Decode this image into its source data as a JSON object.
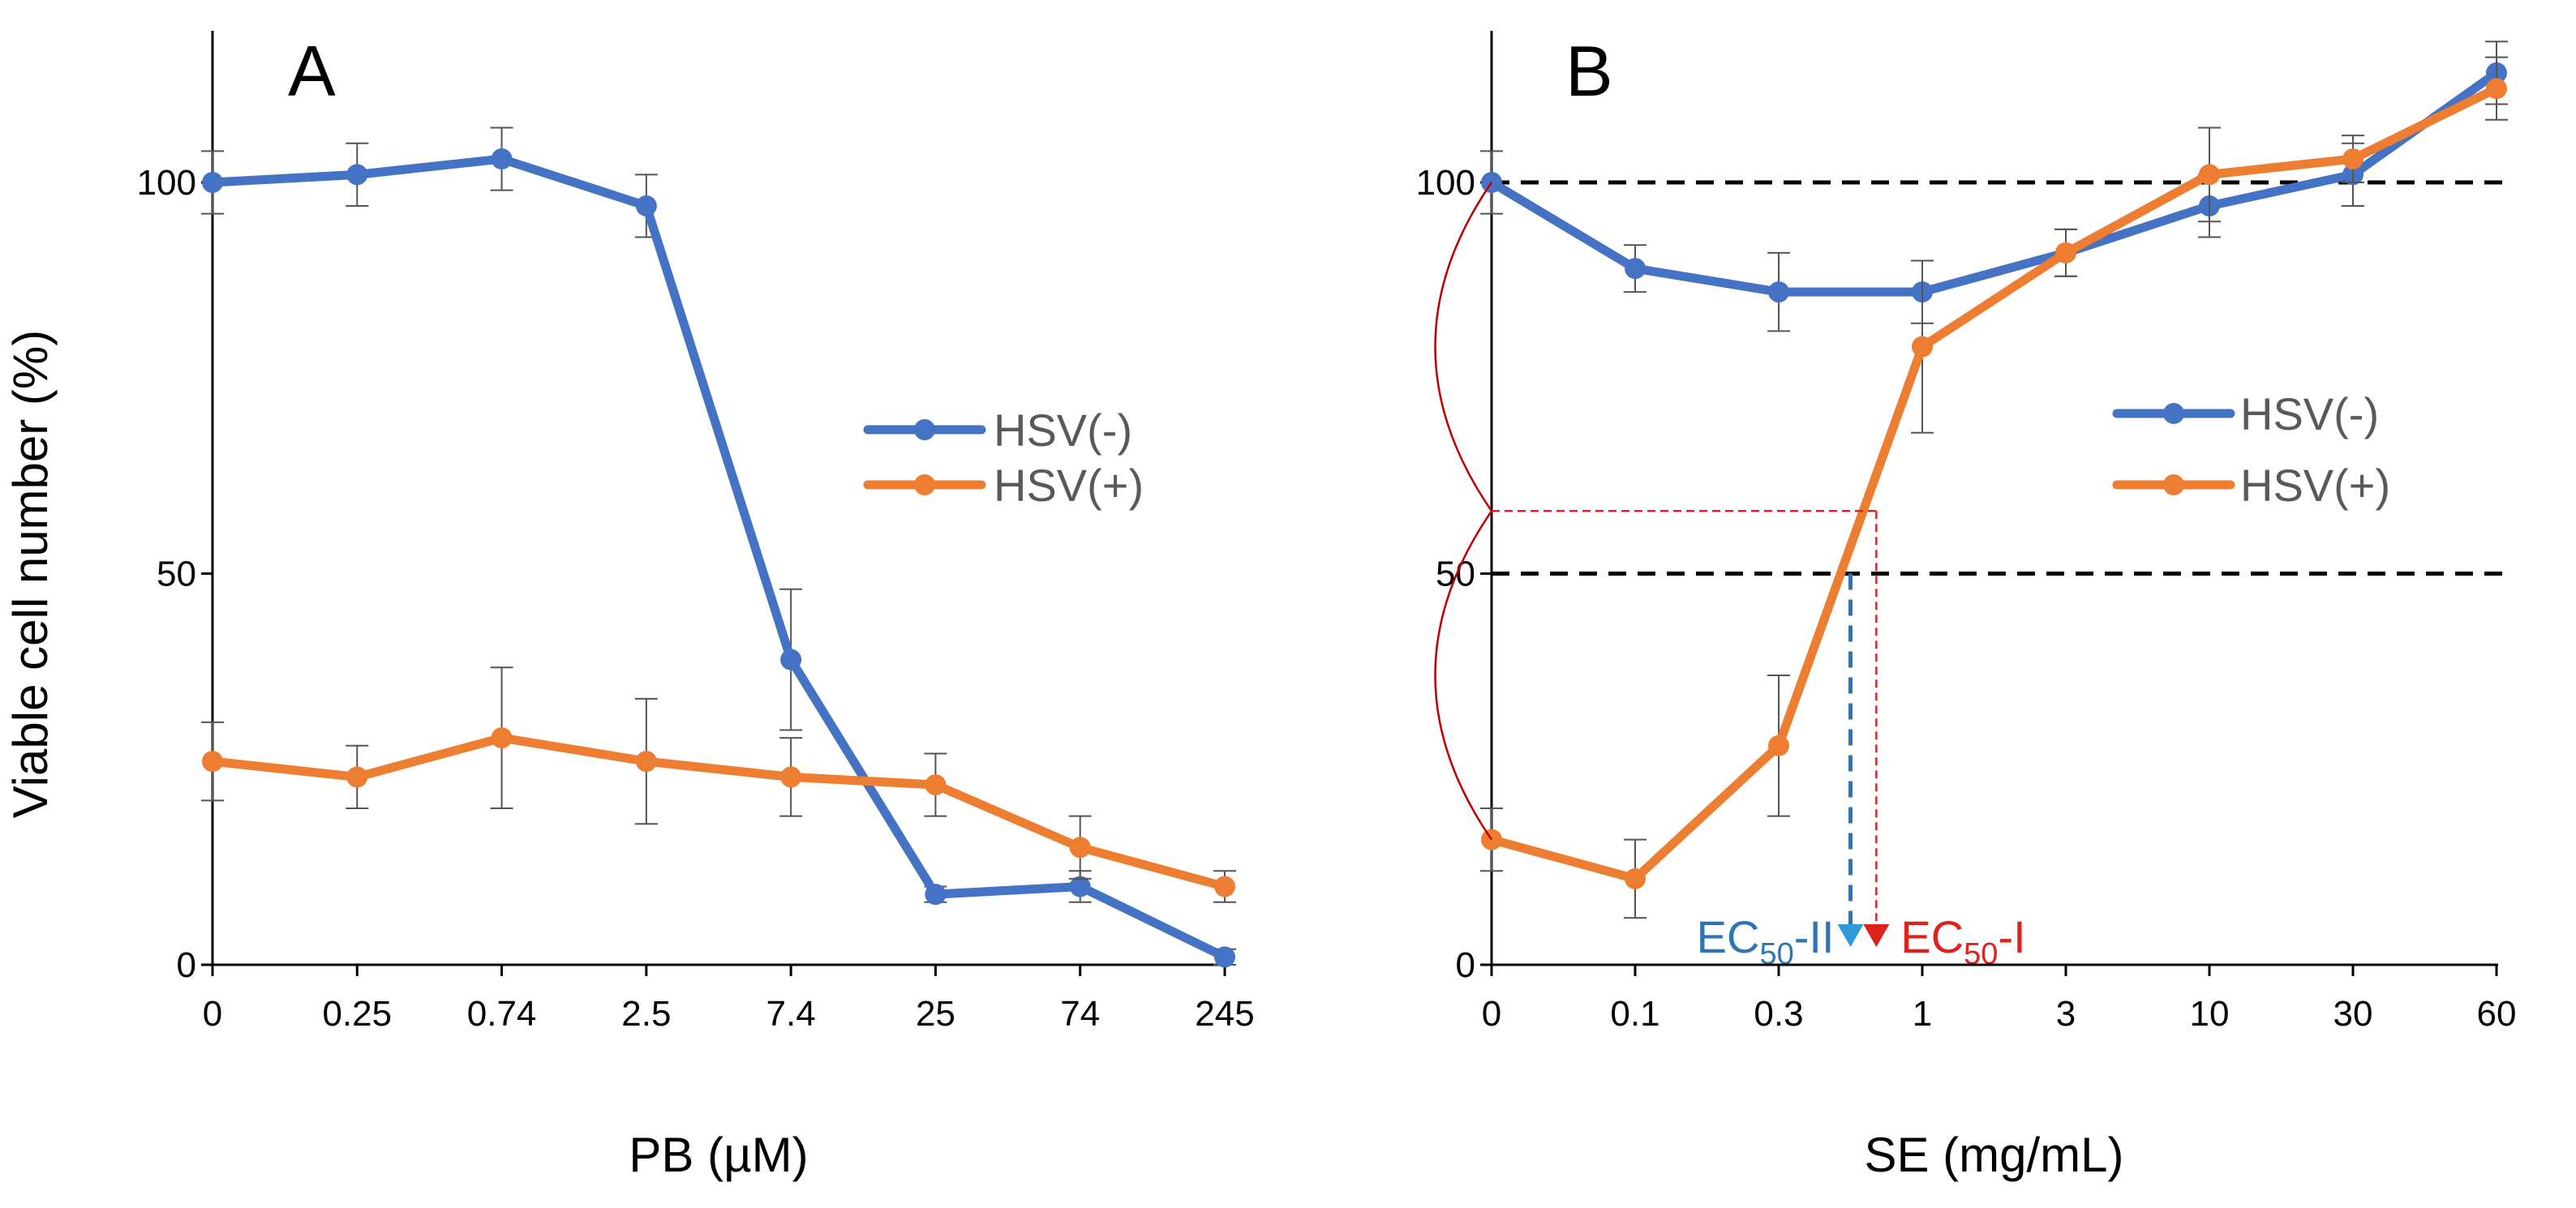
{
  "chart_data": [
    {
      "type": "line",
      "panel_label": "A",
      "xlabel": "PB (µM)",
      "ylabel": "Viable cell number  (%)",
      "categories": [
        "0",
        "0.25",
        "0.74",
        "2.5",
        "7.4",
        "25",
        "74",
        "245"
      ],
      "yticks": [
        "0",
        "50",
        "100"
      ],
      "ylim": [
        0,
        120
      ],
      "series": [
        {
          "name": "HSV(-)",
          "color": "#4472C4",
          "values": [
            100,
            101,
            103,
            97,
            39,
            9,
            10,
            1
          ],
          "errors": [
            4,
            4,
            4,
            4,
            9,
            1,
            2,
            1
          ]
        },
        {
          "name": "HSV(+)",
          "color": "#ED7D31",
          "values": [
            26,
            24,
            29,
            26,
            24,
            23,
            15,
            10
          ],
          "errors": [
            5,
            4,
            9,
            8,
            5,
            4,
            4,
            2
          ]
        }
      ],
      "legend": [
        "HSV(-)",
        "HSV(+)"
      ]
    },
    {
      "type": "line",
      "panel_label": "B",
      "xlabel": "SE (mg/mL)",
      "ylabel": "",
      "categories": [
        "0",
        "0.1",
        "0.3",
        "1",
        "3",
        "10",
        "30",
        "60"
      ],
      "yticks": [
        "0",
        "50",
        "100"
      ],
      "ylim": [
        0,
        120
      ],
      "reference_lines": [
        100,
        50
      ],
      "series": [
        {
          "name": "HSV(-)",
          "color": "#4472C4",
          "values": [
            100,
            89,
            86,
            86,
            91,
            97,
            101,
            114
          ],
          "errors": [
            4,
            3,
            5,
            4,
            3,
            4,
            4,
            4
          ]
        },
        {
          "name": "HSV(+)",
          "color": "#ED7D31",
          "values": [
            16,
            11,
            28,
            79,
            91,
            101,
            103,
            112
          ],
          "errors": [
            4,
            5,
            9,
            11,
            3,
            6,
            3,
            4
          ]
        }
      ],
      "legend": [
        "HSV(-)",
        "HSV(+)"
      ],
      "annotations": {
        "ec50_ii": {
          "main": "EC",
          "sub": "50",
          "suffix": "-II",
          "color": "#2E75B6",
          "x_category_pos": 2.5,
          "y_value": 50
        },
        "ec50_i": {
          "main": "EC",
          "sub": "50",
          "suffix": "-I",
          "color": "#E0201B",
          "x_category_pos": 2.68,
          "y_value": 58
        }
      }
    }
  ]
}
